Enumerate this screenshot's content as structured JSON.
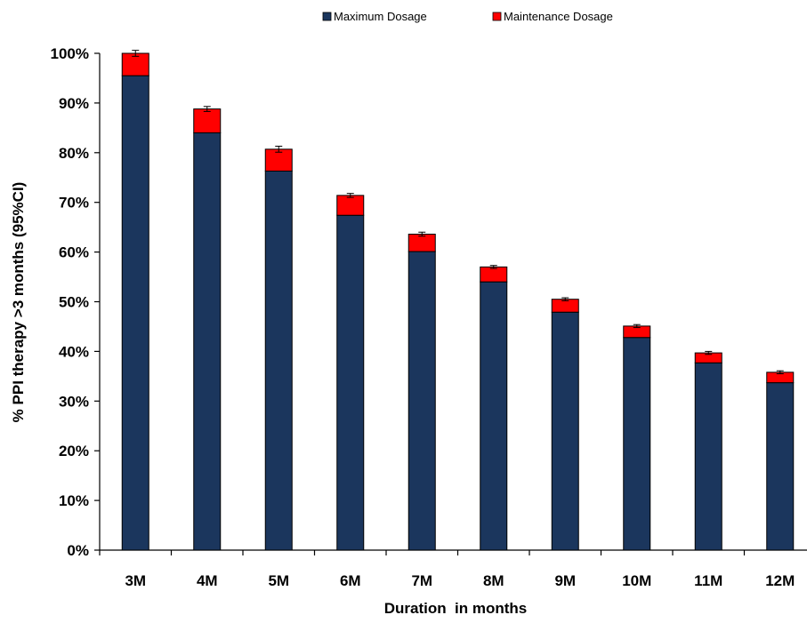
{
  "chart_data": {
    "type": "bar",
    "stacked": true,
    "title": "",
    "xlabel": "Duration  in months",
    "ylabel": "% PPI therapy  >3 months (95%CI)",
    "categories": [
      "3M",
      "4M",
      "5M",
      "6M",
      "7M",
      "8M",
      "9M",
      "10M",
      "11M",
      "12M"
    ],
    "series": [
      {
        "name": "Maximum Dosage",
        "color": "#1b365d",
        "values": [
          95.5,
          84.0,
          76.3,
          67.4,
          60.1,
          54.0,
          47.9,
          42.8,
          37.7,
          33.7
        ]
      },
      {
        "name": "Maintenance Dosage",
        "color": "#ff0000",
        "values": [
          4.5,
          4.8,
          4.4,
          4.0,
          3.5,
          3.0,
          2.6,
          2.3,
          2.0,
          2.1
        ]
      }
    ],
    "totals": [
      100.0,
      88.8,
      80.7,
      71.4,
      63.6,
      57.0,
      50.5,
      45.1,
      39.7,
      35.8
    ],
    "error_bars": {
      "type": "95% CI",
      "plus_minus": [
        0.6,
        0.5,
        0.6,
        0.4,
        0.4,
        0.3,
        0.3,
        0.3,
        0.3,
        0.3
      ]
    },
    "yticks": [
      "0%",
      "10%",
      "20%",
      "30%",
      "40%",
      "50%",
      "60%",
      "70%",
      "80%",
      "90%",
      "100%"
    ],
    "ylim": [
      0,
      100
    ],
    "grid": false,
    "legend_position": "top"
  }
}
